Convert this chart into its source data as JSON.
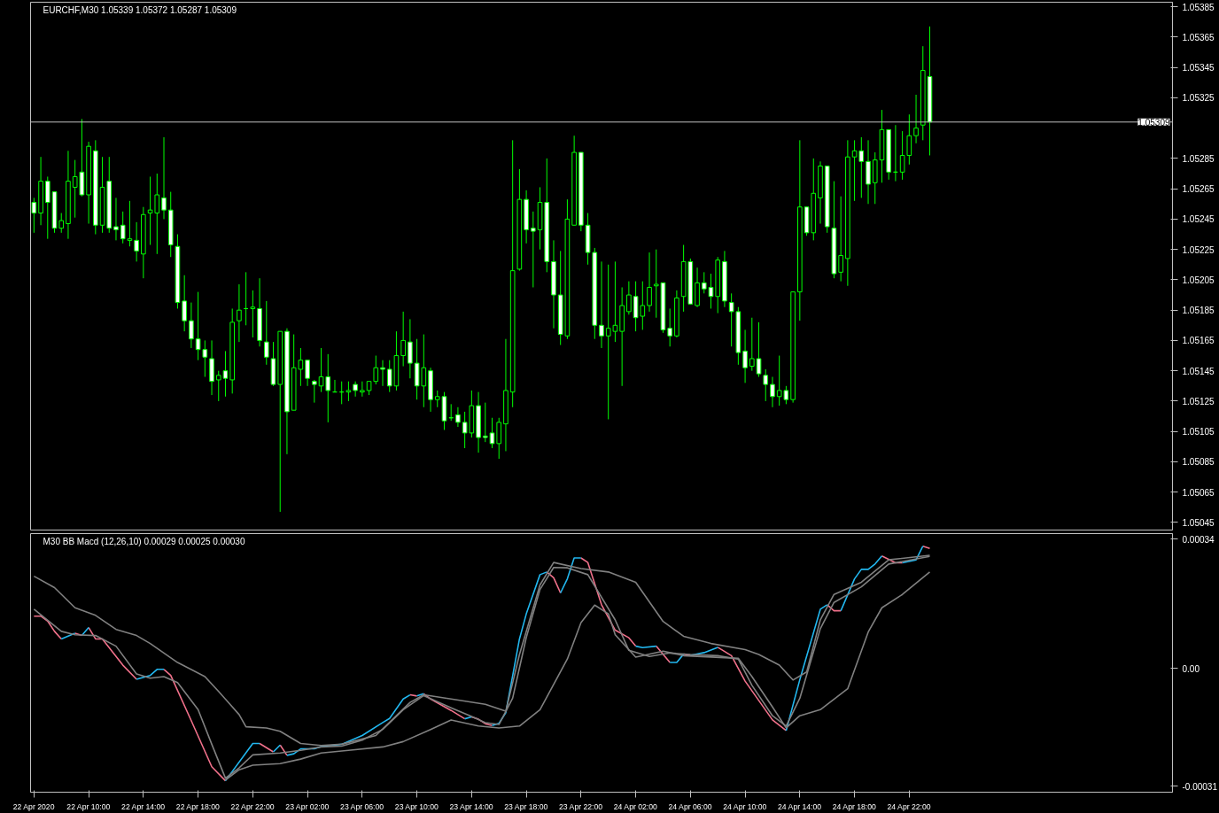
{
  "chart_data": [
    {
      "type": "candlestick",
      "title": "EURCHF,M30  1.05339 1.05372 1.05287 1.05309",
      "color": "#00ff00",
      "x": [
        "2020-04-22T06:00",
        "2020-04-22T06:30",
        "2020-04-22T07:00",
        "2020-04-22T07:30",
        "2020-04-22T08:00",
        "2020-04-22T08:30",
        "2020-04-22T09:00",
        "2020-04-22T09:30",
        "2020-04-22T10:00",
        "2020-04-22T10:30",
        "2020-04-22T11:00",
        "2020-04-22T11:30",
        "2020-04-22T12:00",
        "2020-04-22T12:30",
        "2020-04-22T13:00",
        "2020-04-22T13:30",
        "2020-04-22T14:00",
        "2020-04-22T14:30",
        "2020-04-22T15:00",
        "2020-04-22T15:30",
        "2020-04-22T16:00",
        "2020-04-22T16:30",
        "2020-04-22T17:00",
        "2020-04-22T17:30",
        "2020-04-22T18:00",
        "2020-04-22T18:30",
        "2020-04-22T19:00",
        "2020-04-22T19:30",
        "2020-04-22T20:00",
        "2020-04-22T20:30",
        "2020-04-22T21:00",
        "2020-04-22T21:30",
        "2020-04-22T22:00",
        "2020-04-22T22:30",
        "2020-04-22T23:00",
        "2020-04-22T23:30",
        "2020-04-23T00:00",
        "2020-04-23T00:30",
        "2020-04-23T01:00",
        "2020-04-23T01:30",
        "2020-04-23T02:00",
        "2020-04-23T02:30",
        "2020-04-23T03:00",
        "2020-04-23T03:30",
        "2020-04-23T04:00",
        "2020-04-23T04:30",
        "2020-04-23T05:00",
        "2020-04-23T05:30",
        "2020-04-23T06:00",
        "2020-04-23T06:30",
        "2020-04-23T07:00",
        "2020-04-23T07:30",
        "2020-04-23T08:00",
        "2020-04-23T08:30",
        "2020-04-23T09:00",
        "2020-04-23T09:30",
        "2020-04-23T10:00",
        "2020-04-23T10:30",
        "2020-04-23T11:00",
        "2020-04-23T11:30",
        "2020-04-23T12:00",
        "2020-04-23T12:30",
        "2020-04-23T13:00",
        "2020-04-23T13:30",
        "2020-04-23T14:00",
        "2020-04-23T14:30",
        "2020-04-23T15:00",
        "2020-04-23T15:30",
        "2020-04-23T16:00",
        "2020-04-23T16:30",
        "2020-04-23T17:00",
        "2020-04-23T17:30",
        "2020-04-23T18:00",
        "2020-04-23T18:30",
        "2020-04-23T19:00",
        "2020-04-23T19:30",
        "2020-04-23T20:00",
        "2020-04-23T20:30",
        "2020-04-23T21:00",
        "2020-04-23T21:30",
        "2020-04-23T22:00",
        "2020-04-23T22:30",
        "2020-04-23T23:00",
        "2020-04-23T23:30",
        "2020-04-24T00:00",
        "2020-04-24T00:30",
        "2020-04-24T01:00",
        "2020-04-24T01:30",
        "2020-04-24T02:00",
        "2020-04-24T02:30",
        "2020-04-24T03:00",
        "2020-04-24T03:30",
        "2020-04-24T04:00",
        "2020-04-24T04:30",
        "2020-04-24T05:00",
        "2020-04-24T05:30",
        "2020-04-24T06:00",
        "2020-04-24T06:30",
        "2020-04-24T07:00",
        "2020-04-24T07:30",
        "2020-04-24T08:00",
        "2020-04-24T08:30",
        "2020-04-24T09:00",
        "2020-04-24T09:30",
        "2020-04-24T10:00",
        "2020-04-24T10:30",
        "2020-04-24T11:00",
        "2020-04-24T11:30",
        "2020-04-24T12:00",
        "2020-04-24T12:30",
        "2020-04-24T13:00",
        "2020-04-24T13:30",
        "2020-04-24T14:00",
        "2020-04-24T14:30",
        "2020-04-24T15:00",
        "2020-04-24T15:30",
        "2020-04-24T16:00",
        "2020-04-24T16:30",
        "2020-04-24T17:00",
        "2020-04-24T17:30",
        "2020-04-24T18:00",
        "2020-04-24T18:30",
        "2020-04-24T19:00",
        "2020-04-24T19:30",
        "2020-04-24T20:00",
        "2020-04-24T20:30",
        "2020-04-24T21:00",
        "2020-04-24T21:30",
        "2020-04-24T22:00",
        "2020-04-24T22:30",
        "2020-04-24T23:00",
        "2020-04-24T23:30"
      ],
      "ohlc": [
        [
          1.05256,
          1.05259,
          1.05236,
          1.05249
        ],
        [
          1.05249,
          1.05286,
          1.05241,
          1.0527
        ],
        [
          1.0527,
          1.05273,
          1.05232,
          1.05256
        ],
        [
          1.05263,
          1.05263,
          1.05236,
          1.05239
        ],
        [
          1.05239,
          1.05249,
          1.05236,
          1.05244
        ],
        [
          1.05242,
          1.0529,
          1.05232,
          1.0527
        ],
        [
          1.05266,
          1.05284,
          1.05246,
          1.05273
        ],
        [
          1.05276,
          1.05311,
          1.0526,
          1.05261
        ],
        [
          1.05261,
          1.05296,
          1.05242,
          1.05293
        ],
        [
          1.0529,
          1.05297,
          1.05235,
          1.05241
        ],
        [
          1.05241,
          1.05286,
          1.05236,
          1.05266
        ],
        [
          1.0527,
          1.05286,
          1.05236,
          1.05239
        ],
        [
          1.0524,
          1.05259,
          1.05231,
          1.05238
        ],
        [
          1.05241,
          1.0525,
          1.05229,
          1.05232
        ],
        [
          1.05231,
          1.05257,
          1.05227,
          1.05232
        ],
        [
          1.05231,
          1.05243,
          1.05217,
          1.05224
        ],
        [
          1.05222,
          1.05253,
          1.05206,
          1.05248
        ],
        [
          1.05249,
          1.05273,
          1.05228,
          1.05251
        ],
        [
          1.05249,
          1.05275,
          1.05222,
          1.05261
        ],
        [
          1.05259,
          1.05299,
          1.05245,
          1.05251
        ],
        [
          1.05251,
          1.05263,
          1.0522,
          1.05228
        ],
        [
          1.05227,
          1.05235,
          1.05186,
          1.0519
        ],
        [
          1.05191,
          1.05208,
          1.05171,
          1.05178
        ],
        [
          1.05178,
          1.0519,
          1.0516,
          1.05166
        ],
        [
          1.05166,
          1.05197,
          1.05152,
          1.05159
        ],
        [
          1.05159,
          1.05165,
          1.05141,
          1.05154
        ],
        [
          1.05153,
          1.05165,
          1.05129,
          1.05138
        ],
        [
          1.05139,
          1.05145,
          1.05125,
          1.05142
        ],
        [
          1.05145,
          1.05158,
          1.05128,
          1.0514
        ],
        [
          1.05139,
          1.05186,
          1.0513,
          1.05177
        ],
        [
          1.05178,
          1.05202,
          1.05164,
          1.05185
        ],
        [
          1.05186,
          1.0521,
          1.05175,
          1.05186
        ],
        [
          1.05186,
          1.05198,
          1.05167,
          1.05187
        ],
        [
          1.05186,
          1.05206,
          1.05161,
          1.05165
        ],
        [
          1.05164,
          1.05191,
          1.05149,
          1.05154
        ],
        [
          1.05153,
          1.05164,
          1.05135,
          1.05136
        ],
        [
          1.05136,
          1.05171,
          1.05052,
          1.05171
        ],
        [
          1.05171,
          1.05173,
          1.0509,
          1.05118
        ],
        [
          1.05119,
          1.05169,
          1.05119,
          1.05147
        ],
        [
          1.05146,
          1.0516,
          1.05135,
          1.05152
        ],
        [
          1.05152,
          1.05152,
          1.05135,
          1.0514
        ],
        [
          1.05138,
          1.05139,
          1.05124,
          1.05136
        ],
        [
          1.05135,
          1.0516,
          1.05131,
          1.05141
        ],
        [
          1.05141,
          1.05156,
          1.05111,
          1.05132
        ],
        [
          1.05131,
          1.05139,
          1.05131,
          1.05131
        ],
        [
          1.05131,
          1.05138,
          1.05123,
          1.05131
        ],
        [
          1.05131,
          1.05138,
          1.05125,
          1.05132
        ],
        [
          1.05136,
          1.05138,
          1.05128,
          1.05132
        ],
        [
          1.05131,
          1.05138,
          1.05128,
          1.05132
        ],
        [
          1.05132,
          1.05138,
          1.05129,
          1.05138
        ],
        [
          1.05138,
          1.05155,
          1.05136,
          1.05147
        ],
        [
          1.05147,
          1.05152,
          1.05135,
          1.05146
        ],
        [
          1.05146,
          1.05152,
          1.05131,
          1.05135
        ],
        [
          1.05135,
          1.05171,
          1.05132,
          1.05155
        ],
        [
          1.05155,
          1.05184,
          1.05148,
          1.05165
        ],
        [
          1.05164,
          1.05179,
          1.0514,
          1.0515
        ],
        [
          1.0515,
          1.05166,
          1.05126,
          1.05135
        ],
        [
          1.05135,
          1.05169,
          1.05121,
          1.05147
        ],
        [
          1.05145,
          1.05147,
          1.05118,
          1.05126
        ],
        [
          1.05126,
          1.05132,
          1.05121,
          1.05128
        ],
        [
          1.05128,
          1.05131,
          1.05106,
          1.05112
        ],
        [
          1.05114,
          1.05123,
          1.05112,
          1.05114
        ],
        [
          1.05116,
          1.05121,
          1.05108,
          1.05111
        ],
        [
          1.05111,
          1.05118,
          1.05094,
          1.05104
        ],
        [
          1.05104,
          1.05132,
          1.05101,
          1.05122
        ],
        [
          1.05122,
          1.05131,
          1.05091,
          1.05101
        ],
        [
          1.05102,
          1.05124,
          1.05098,
          1.05101
        ],
        [
          1.05104,
          1.05114,
          1.05094,
          1.05097
        ],
        [
          1.05097,
          1.05114,
          1.05087,
          1.05111
        ],
        [
          1.0511,
          1.05166,
          1.05092,
          1.05132
        ],
        [
          1.05131,
          1.05297,
          1.05121,
          1.05211
        ],
        [
          1.05212,
          1.05278,
          1.05211,
          1.05258
        ],
        [
          1.05258,
          1.05264,
          1.05229,
          1.05238
        ],
        [
          1.05239,
          1.0525,
          1.052,
          1.05237
        ],
        [
          1.05238,
          1.05266,
          1.05225,
          1.05256
        ],
        [
          1.05256,
          1.05285,
          1.0521,
          1.05217
        ],
        [
          1.05217,
          1.05231,
          1.05173,
          1.05195
        ],
        [
          1.05195,
          1.05224,
          1.05162,
          1.05169
        ],
        [
          1.05168,
          1.05258,
          1.05166,
          1.05245
        ],
        [
          1.05241,
          1.053,
          1.05241,
          1.05289
        ],
        [
          1.05289,
          1.05289,
          1.05237,
          1.05241
        ],
        [
          1.05241,
          1.05249,
          1.05215,
          1.05223
        ],
        [
          1.05223,
          1.05226,
          1.05166,
          1.05175
        ],
        [
          1.05175,
          1.05217,
          1.0516,
          1.05168
        ],
        [
          1.05168,
          1.05215,
          1.05113,
          1.05173
        ],
        [
          1.05171,
          1.05217,
          1.05164,
          1.05175
        ],
        [
          1.05171,
          1.052,
          1.05135,
          1.05188
        ],
        [
          1.05184,
          1.05204,
          1.05182,
          1.05195
        ],
        [
          1.05194,
          1.05204,
          1.05171,
          1.0518
        ],
        [
          1.05181,
          1.05204,
          1.05172,
          1.05188
        ],
        [
          1.05188,
          1.05223,
          1.05184,
          1.052
        ],
        [
          1.05201,
          1.05225,
          1.0518,
          1.05202
        ],
        [
          1.05203,
          1.05203,
          1.0517,
          1.05172
        ],
        [
          1.05173,
          1.05186,
          1.05161,
          1.05168
        ],
        [
          1.05168,
          1.05198,
          1.05167,
          1.05193
        ],
        [
          1.05194,
          1.05228,
          1.05184,
          1.05217
        ],
        [
          1.05217,
          1.05219,
          1.05189,
          1.05189
        ],
        [
          1.05188,
          1.05213,
          1.05187,
          1.05203
        ],
        [
          1.05203,
          1.0521,
          1.05196,
          1.05199
        ],
        [
          1.052,
          1.05209,
          1.05186,
          1.05194
        ],
        [
          1.05194,
          1.0522,
          1.05183,
          1.05218
        ],
        [
          1.05217,
          1.05224,
          1.05187,
          1.05191
        ],
        [
          1.0519,
          1.05196,
          1.05161,
          1.05184
        ],
        [
          1.05184,
          1.05187,
          1.05149,
          1.05157
        ],
        [
          1.05158,
          1.05172,
          1.05137,
          1.05147
        ],
        [
          1.05148,
          1.0518,
          1.05145,
          1.05153
        ],
        [
          1.05153,
          1.05177,
          1.05141,
          1.05143
        ],
        [
          1.05142,
          1.05146,
          1.05125,
          1.05136
        ],
        [
          1.05136,
          1.05141,
          1.05121,
          1.05128
        ],
        [
          1.05128,
          1.05155,
          1.05122,
          1.05132
        ],
        [
          1.05132,
          1.05135,
          1.05123,
          1.05126
        ],
        [
          1.05126,
          1.05197,
          1.05124,
          1.05197
        ],
        [
          1.05197,
          1.05297,
          1.05178,
          1.05253
        ],
        [
          1.05253,
          1.05253,
          1.05234,
          1.05236
        ],
        [
          1.05236,
          1.05285,
          1.05231,
          1.05262
        ],
        [
          1.05259,
          1.05283,
          1.05242,
          1.0528
        ],
        [
          1.0528,
          1.0528,
          1.05236,
          1.0524
        ],
        [
          1.05239,
          1.0527,
          1.05206,
          1.05209
        ],
        [
          1.0521,
          1.0526,
          1.05204,
          1.05221
        ],
        [
          1.05219,
          1.05297,
          1.05201,
          1.05286
        ],
        [
          1.05286,
          1.05297,
          1.05257,
          1.0529
        ],
        [
          1.0529,
          1.05299,
          1.05259,
          1.05283
        ],
        [
          1.05283,
          1.05297,
          1.05255,
          1.05268
        ],
        [
          1.05269,
          1.05289,
          1.05255,
          1.05284
        ],
        [
          1.05284,
          1.05317,
          1.05269,
          1.05304
        ],
        [
          1.05304,
          1.05304,
          1.05271,
          1.05276
        ],
        [
          1.05276,
          1.05307,
          1.0527,
          1.05276
        ],
        [
          1.05276,
          1.05303,
          1.05271,
          1.05287
        ],
        [
          1.05287,
          1.05314,
          1.05281,
          1.053
        ],
        [
          1.053,
          1.05327,
          1.05295,
          1.05305
        ],
        [
          1.05307,
          1.05359,
          1.05297,
          1.05343
        ],
        [
          1.05339,
          1.05372,
          1.05287,
          1.05309
        ]
      ],
      "xlim": [
        "2020-04-22T05:45",
        "2020-04-25T17:15"
      ],
      "ylim": [
        1.0504,
        1.05388
      ],
      "yticks": [
        1.05385,
        1.05365,
        1.05345,
        1.05325,
        1.05285,
        1.05265,
        1.05245,
        1.05225,
        1.05205,
        1.05185,
        1.05165,
        1.05145,
        1.05125,
        1.05105,
        1.05085,
        1.05065,
        1.05045
      ],
      "tick_labels": "y",
      "ref_lines": [
        {
          "axis": "y",
          "value": 1.05309,
          "label": "1.05309",
          "color": "#c0c0c0"
        }
      ]
    },
    {
      "type": "line",
      "title": "M30 BB Macd (12,26,10) 0.00029 0.00025 0.00030",
      "series": [
        {
          "color": "#f0708a",
          "x": [
            "2020-04-22T06:00",
            "2020-04-22T06:30",
            "2020-04-22T07:00",
            "2020-04-22T07:30",
            "2020-04-22T08:00",
            "2020-04-22T08:30",
            "2020-04-22T09:00",
            "2020-04-22T09:30",
            "2020-04-22T09:45",
            "2020-04-22T10:00",
            "2020-04-22T10:30",
            "2020-04-22T11:00",
            "2020-04-22T12:30",
            "2020-04-22T13:30",
            "2020-04-22T14:00",
            "2020-04-22T15:30",
            "2020-04-22T16:00",
            "2020-04-22T17:30",
            "2020-04-22T19:00",
            "2020-04-22T20:00",
            "2020-04-22T21:00",
            "2020-04-22T22:30",
            "2020-04-22T23:30",
            "2020-04-22T23:45",
            "2020-04-23T00:00",
            "2020-04-23T00:30",
            "2020-04-23T05:00",
            "2020-04-23T09:30",
            "2020-04-23T10:00",
            "2020-04-23T10:15",
            "2020-04-23T10:30",
            "2020-04-23T11:00",
            "2020-04-23T12:30",
            "2020-04-23T13:30",
            "2020-04-23T13:45",
            "2020-04-23T14:00",
            "2020-04-23T14:30",
            "2020-04-23T15:00",
            "2020-04-23T15:30",
            "2020-04-23T17:00",
            "2020-04-23T19:30",
            "2020-04-23T20:00",
            "2020-04-23T20:30",
            "2020-04-23T21:00",
            "2020-04-23T22:00",
            "2020-04-23T22:30",
            "2020-04-23T23:30",
            "2020-04-24T00:30",
            "2020-04-24T01:30",
            "2020-04-24T02:00",
            "2020-04-24T03:00",
            "2020-04-24T03:30",
            "2020-04-24T04:30",
            "2020-04-24T05:00",
            "2020-04-24T05:30",
            "2020-04-24T06:00",
            "2020-04-24T07:00",
            "2020-04-24T08:00",
            "2020-04-24T09:00",
            "2020-04-24T10:00",
            "2020-04-24T12:00",
            "2020-04-24T13:00",
            "2020-04-24T14:00",
            "2020-04-24T16:00",
            "2020-04-24T16:30",
            "2020-04-24T17:00",
            "2020-04-24T18:00",
            "2020-04-24T20:00",
            "2020-04-24T21:00",
            "2020-04-24T21:30",
            "2020-04-24T22:00",
            "2020-04-24T23:00",
            "2020-04-24T23:30"
          ],
          "values": [
            0.000137,
            0.000137,
            0.000124,
            9.7e-05,
            7.7e-05,
            null,
            9.2e-05,
            8.6e-05,
            null,
            0.000107,
            7.7e-05,
            7.7e-05,
            8e-06,
            -2.9e-05,
            null,
            -3e-06,
            -1.9e-05,
            -0.000138,
            -0.000259,
            -0.000296,
            null,
            -0.000198,
            -0.00022,
            null,
            -0.000202,
            -0.000229,
            null,
            -7e-05,
            -7.3e-05,
            null,
            -6.7e-05,
            -8.1e-05,
            -0.000111,
            -0.000133,
            null,
            -0.000128,
            -0.000134,
            -0.000146,
            -0.000151,
            null,
            0.000253,
            0.000238,
            0.000198,
            null,
            0.00029,
            0.000278,
            0.000167,
            0.0001,
            8e-05,
            5.8e-05,
            null,
            5.8e-05,
            1.5e-05,
            null,
            3.7e-05,
            3.4e-05,
            null,
            5.5e-05,
            3.3e-05,
            -3.4e-05,
            -0.000136,
            -0.000164,
            null,
            0.000167,
            0.000151,
            0.000151,
            null,
            0.000295,
            0.000277,
            0.000277,
            null,
            0.000321,
            0.000315
          ]
        },
        {
          "color": "#22b7ef",
          "x": [
            "2020-04-22T08:00",
            "2020-04-22T09:00",
            "2020-04-22T09:15",
            "2020-04-22T09:30",
            "2020-04-22T10:00",
            "2020-04-22T12:00",
            "2020-04-22T13:30",
            "2020-04-22T14:30",
            "2020-04-22T15:00",
            "2020-04-22T15:30",
            "2020-04-22T18:00",
            "2020-04-22T20:00",
            "2020-04-22T22:00",
            "2020-04-22T22:30",
            "2020-04-22T23:00",
            "2020-04-22T23:30",
            "2020-04-23T00:00",
            "2020-04-23T00:15",
            "2020-04-23T00:30",
            "2020-04-23T01:00",
            "2020-04-23T01:30",
            "2020-04-23T02:30",
            "2020-04-23T03:00",
            "2020-04-23T04:30",
            "2020-04-23T06:00",
            "2020-04-23T07:30",
            "2020-04-23T08:00",
            "2020-04-23T09:00",
            "2020-04-23T09:30",
            "2020-04-23T09:45",
            "2020-04-23T10:00",
            "2020-04-23T10:30",
            "2020-04-23T12:00",
            "2020-04-23T13:30",
            "2020-04-23T14:00",
            "2020-04-23T15:00",
            "2020-04-23T15:30",
            "2020-04-23T16:00",
            "2020-04-23T16:30",
            "2020-04-23T17:30",
            "2020-04-23T18:00",
            "2020-04-23T19:00",
            "2020-04-23T19:30",
            "2020-04-23T20:00",
            "2020-04-23T20:30",
            "2020-04-23T21:00",
            "2020-04-23T21:30",
            "2020-04-23T22:00",
            "2020-04-24T00:00",
            "2020-04-24T02:00",
            "2020-04-24T02:30",
            "2020-04-24T03:30",
            "2020-04-24T04:00",
            "2020-04-24T04:30",
            "2020-04-24T05:00",
            "2020-04-24T05:30",
            "2020-04-24T05:45",
            "2020-04-24T06:00",
            "2020-04-24T07:00",
            "2020-04-24T08:00",
            "2020-04-24T10:00",
            "2020-04-24T13:00",
            "2020-04-24T14:00",
            "2020-04-24T15:30",
            "2020-04-24T16:00",
            "2020-04-24T16:30",
            "2020-04-24T17:00",
            "2020-04-24T18:00",
            "2020-04-24T18:30",
            "2020-04-24T19:00",
            "2020-04-24T19:30",
            "2020-04-24T20:00",
            "2020-04-24T21:00",
            "2020-04-24T21:30",
            "2020-04-24T22:30",
            "2020-04-24T23:00"
          ],
          "values": [
            7.7e-05,
            9.2e-05,
            null,
            8.6e-05,
            0.000107,
            null,
            -2.9e-05,
            -1.9e-05,
            -3e-06,
            -3e-06,
            null,
            -0.000296,
            -0.000198,
            -0.000198,
            null,
            -0.00022,
            -0.000202,
            null,
            -0.000229,
            -0.000225,
            -0.000212,
            -0.000212,
            -0.000206,
            -0.0002,
            -0.000177,
            -0.000143,
            -0.000132,
            -8.1e-05,
            -7e-05,
            null,
            -7.3e-05,
            -6.7e-05,
            null,
            -0.000133,
            -0.000128,
            null,
            -0.000151,
            -0.000145,
            -0.000117,
            7.7e-05,
            0.000143,
            0.000246,
            0.000253,
            null,
            0.000198,
            0.000235,
            0.00029,
            0.00029,
            null,
            5.8e-05,
            5.4e-05,
            5.8e-05,
            null,
            1.5e-05,
            1.5e-05,
            3.7e-05,
            null,
            3.4e-05,
            4.1e-05,
            5.5e-05,
            null,
            -0.000164,
            -3e-05,
            0.000155,
            0.000167,
            null,
            0.000151,
            0.000235,
            0.00026,
            0.00026,
            0.000274,
            0.000295,
            null,
            0.000277,
            0.000285,
            0.000321
          ]
        },
        {
          "color": "#808080",
          "x": [
            "2020-04-22T06:00",
            "2020-04-22T07:30",
            "2020-04-22T09:00",
            "2020-04-22T10:30",
            "2020-04-22T12:00",
            "2020-04-22T13:30",
            "2020-04-22T14:30",
            "2020-04-22T16:30",
            "2020-04-22T18:30",
            "2020-04-22T19:30",
            "2020-04-22T21:00",
            "2020-04-22T21:30",
            "2020-04-22T23:00",
            "2020-04-23T00:00",
            "2020-04-23T01:30",
            "2020-04-23T03:00",
            "2020-04-23T04:30",
            "2020-04-23T07:00",
            "2020-04-23T09:30",
            "2020-04-23T10:30",
            "2020-04-23T12:30",
            "2020-04-23T15:00",
            "2020-04-23T16:30",
            "2020-04-23T17:30",
            "2020-04-23T19:00",
            "2020-04-23T20:00",
            "2020-04-23T22:00",
            "2020-04-24T00:00",
            "2020-04-24T02:00",
            "2020-04-24T04:00",
            "2020-04-24T05:30",
            "2020-04-24T07:30",
            "2020-04-24T10:00",
            "2020-04-24T11:00",
            "2020-04-24T12:30",
            "2020-04-24T13:30",
            "2020-04-24T14:30",
            "2020-04-24T15:30",
            "2020-04-24T16:30",
            "2020-04-24T18:30",
            "2020-04-24T20:30",
            "2020-04-24T23:30"
          ],
          "values": [
            0.000242,
            0.000212,
            0.000159,
            0.000139,
            0.000102,
            8.6e-05,
            6.5e-05,
            1.5e-05,
            -2.2e-05,
            -6.1e-05,
            -0.000122,
            -0.000154,
            -0.000157,
            -0.000166,
            -0.000198,
            -0.000203,
            -0.0002,
            -0.000177,
            -9e-05,
            -7e-05,
            -8.1e-05,
            -9.5e-05,
            -0.000113,
            3.6e-05,
            0.000219,
            0.000278,
            0.000262,
            0.000253,
            0.000226,
            0.000123,
            8.4e-05,
            6.5e-05,
            4.9e-05,
            3.6e-05,
            8e-06,
            -3.1e-05,
            -1e-05,
            0.000127,
            0.000194,
            0.000226,
            0.000285,
            0.000297
          ]
        },
        {
          "color": "#808080",
          "x": [
            "2020-04-22T06:00",
            "2020-04-22T08:00",
            "2020-04-22T09:00",
            "2020-04-22T10:30",
            "2020-04-22T12:00",
            "2020-04-22T13:30",
            "2020-04-22T14:30",
            "2020-04-22T15:30",
            "2020-04-22T16:30",
            "2020-04-22T18:00",
            "2020-04-22T19:00",
            "2020-04-22T20:00",
            "2020-04-22T21:00",
            "2020-04-22T22:00",
            "2020-04-23T00:00",
            "2020-04-23T01:30",
            "2020-04-23T03:00",
            "2020-04-23T04:30",
            "2020-04-23T06:00",
            "2020-04-23T07:30",
            "2020-04-23T09:00",
            "2020-04-23T10:30",
            "2020-04-23T12:30",
            "2020-04-23T14:00",
            "2020-04-23T15:00",
            "2020-04-23T16:00",
            "2020-04-23T17:00",
            "2020-04-23T18:00",
            "2020-04-23T19:00",
            "2020-04-23T20:00",
            "2020-04-23T21:00",
            "2020-04-23T22:30",
            "2020-04-24T00:30",
            "2020-04-24T01:30",
            "2020-04-24T03:00",
            "2020-04-24T04:30",
            "2020-04-24T06:00",
            "2020-04-24T08:00",
            "2020-04-24T09:30",
            "2020-04-24T10:30",
            "2020-04-24T12:00",
            "2020-04-24T13:00",
            "2020-04-24T14:00",
            "2020-04-24T15:30",
            "2020-04-24T16:30",
            "2020-04-24T18:30",
            "2020-04-24T20:30",
            "2020-04-24T23:30"
          ],
          "values": [
            0.000155,
            9.7e-05,
            8.8e-05,
            8.6e-05,
            5.8e-05,
            -1.5e-05,
            -2.6e-05,
            -2.2e-05,
            -3.8e-05,
            -0.000109,
            -0.0002,
            -0.000289,
            -0.000262,
            -0.000228,
            -0.000223,
            -0.000216,
            -0.000207,
            -0.000205,
            -0.000189,
            -0.000161,
            -0.000109,
            -7.2e-05,
            -0.000104,
            -0.000127,
            -0.000143,
            -0.000148,
            -7.9e-05,
            8.1e-05,
            0.000207,
            0.000265,
            0.000264,
            0.000246,
            0.000127,
            4.7e-05,
            3.1e-05,
            4e-05,
            3.6e-05,
            3.3e-05,
            2.4e-05,
            -4.5e-05,
            -0.000125,
            -0.000152,
            -7.9e-05,
            0.000104,
            0.000173,
            0.000214,
            0.000274,
            0.000294
          ]
        },
        {
          "color": "#808080",
          "x": [
            "2020-04-22T20:00",
            "2020-04-22T21:00",
            "2020-04-22T22:00",
            "2020-04-23T00:00",
            "2020-04-23T01:30",
            "2020-04-23T03:00",
            "2020-04-23T05:00",
            "2020-04-23T07:30",
            "2020-04-23T09:00",
            "2020-04-23T11:00",
            "2020-04-23T12:30",
            "2020-04-23T14:30",
            "2020-04-23T16:00",
            "2020-04-23T17:30",
            "2020-04-23T19:00",
            "2020-04-23T21:00",
            "2020-04-23T22:00",
            "2020-04-23T23:00",
            "2020-04-24T00:00",
            "2020-04-24T00:30",
            "2020-04-24T02:00",
            "2020-04-24T04:00",
            "2020-04-24T05:30",
            "2020-04-24T09:30",
            "2020-04-24T10:30",
            "2020-04-24T12:00",
            "2020-04-24T13:00",
            "2020-04-24T14:00",
            "2020-04-24T15:30",
            "2020-04-24T17:30",
            "2020-04-24T19:00",
            "2020-04-24T20:00",
            "2020-04-24T21:30",
            "2020-04-24T23:30"
          ],
          "values": [
            -0.000294,
            -0.000267,
            -0.000255,
            -0.000251,
            -0.000239,
            -0.000223,
            -0.000216,
            -0.000207,
            -0.000193,
            -0.000161,
            -0.000136,
            -0.000152,
            -0.000157,
            -0.000152,
            -0.000109,
            2.4e-05,
            0.00012,
            0.000166,
            0.000143,
            8.8e-05,
            2.9e-05,
            4.5e-05,
            3.3e-05,
            2.6e-05,
            -2.2e-05,
            -0.000102,
            -0.000157,
            -0.000125,
            -0.000109,
            -5.4e-05,
            9.5e-05,
            0.000159,
            0.000194,
            0.000253
          ]
        }
      ],
      "xlim": [
        "2020-04-22T05:45",
        "2020-04-25T17:15"
      ],
      "ylim": [
        -0.000326,
        0.000354
      ],
      "xticks": [
        {
          "value": "2020-04-22T06:00",
          "label": "22 Apr 2020"
        },
        {
          "value": "2020-04-22T10:00",
          "label": "22 Apr 10:00"
        },
        {
          "value": "2020-04-22T14:00",
          "label": "22 Apr 14:00"
        },
        {
          "value": "2020-04-22T18:00",
          "label": "22 Apr 18:00"
        },
        {
          "value": "2020-04-22T22:00",
          "label": "22 Apr 22:00"
        },
        {
          "value": "2020-04-23T02:00",
          "label": "23 Apr 02:00"
        },
        {
          "value": "2020-04-23T06:00",
          "label": "23 Apr 06:00"
        },
        {
          "value": "2020-04-23T10:00",
          "label": "23 Apr 10:00"
        },
        {
          "value": "2020-04-23T14:00",
          "label": "23 Apr 14:00"
        },
        {
          "value": "2020-04-23T18:00",
          "label": "23 Apr 18:00"
        },
        {
          "value": "2020-04-23T22:00",
          "label": "23 Apr 22:00"
        },
        {
          "value": "2020-04-24T02:00",
          "label": "24 Apr 02:00"
        },
        {
          "value": "2020-04-24T06:00",
          "label": "24 Apr 06:00"
        },
        {
          "value": "2020-04-24T10:00",
          "label": "24 Apr 10:00"
        },
        {
          "value": "2020-04-24T14:00",
          "label": "24 Apr 14:00"
        },
        {
          "value": "2020-04-24T18:00",
          "label": "24 Apr 18:00"
        },
        {
          "value": "2020-04-24T22:00",
          "label": "24 Apr 22:00"
        }
      ],
      "yticks": [
        0.00034,
        {
          "value": 0,
          "label": "0.00"
        },
        -0.00031
      ]
    }
  ]
}
